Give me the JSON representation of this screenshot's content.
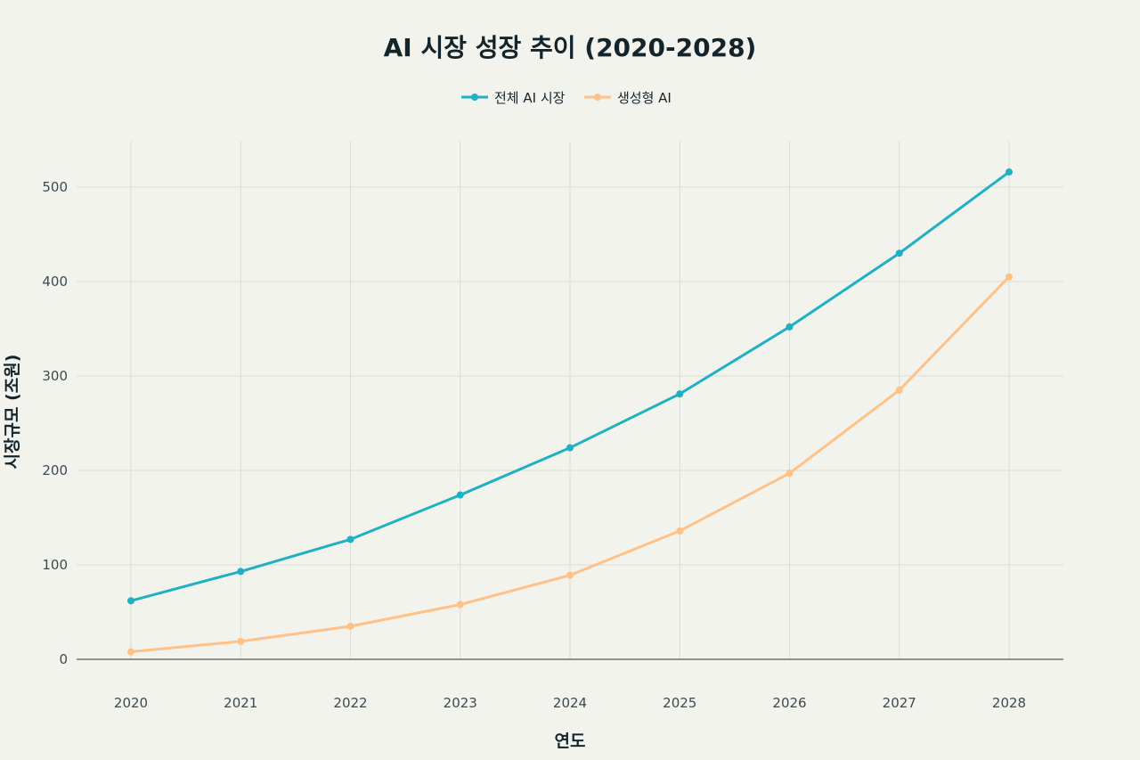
{
  "chart_data": {
    "type": "line",
    "title": "AI 시장 성장 추이 (2020-2028)",
    "xlabel": "연도",
    "ylabel": "시장규모 (조원)",
    "categories": [
      "2020",
      "2021",
      "2022",
      "2023",
      "2024",
      "2025",
      "2026",
      "2027",
      "2028"
    ],
    "ylim": [
      0,
      550
    ],
    "yticks": [
      0,
      100,
      200,
      300,
      400,
      500
    ],
    "grid": true,
    "legend_position": "top-center",
    "series": [
      {
        "name": "전체 AI 시장",
        "color": "#1fb0c3",
        "values": [
          62,
          93,
          127,
          174,
          224,
          281,
          352,
          430,
          516
        ]
      },
      {
        "name": "생성형 AI",
        "color": "#ffc185",
        "values": [
          8,
          19,
          35,
          58,
          89,
          136,
          197,
          285,
          405
        ]
      }
    ]
  }
}
